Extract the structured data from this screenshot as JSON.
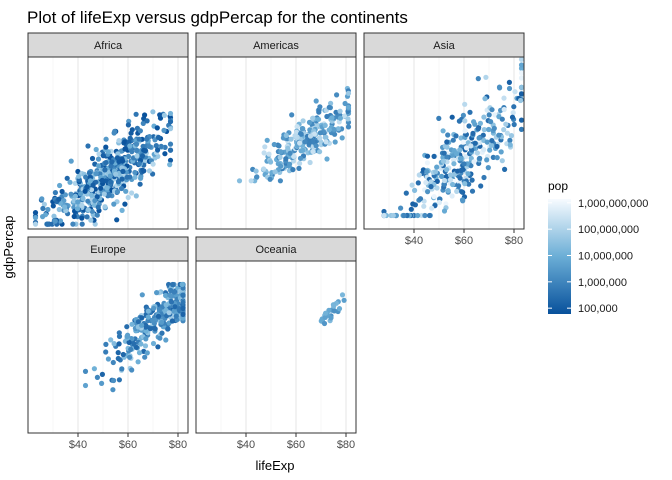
{
  "chart_data": {
    "type": "scatter",
    "title": "Plot of lifeExp versus gdpPercap for the continents",
    "xlabel": "lifeExp",
    "ylabel": "gdpPercap",
    "x_range": [
      20,
      84
    ],
    "y_scale": "log",
    "y_range": [
      200,
      120000
    ],
    "y_tick_labels_shown": false,
    "x_ticks": [
      {
        "value": 40,
        "label": "$40"
      },
      {
        "value": 60,
        "label": "$60"
      },
      {
        "value": 80,
        "label": "$80"
      }
    ],
    "grid": "vertical-only",
    "panel_border": true,
    "legend": {
      "title": "pop",
      "placement": "right",
      "scale": "log",
      "range": [
        60000,
        1400000000
      ],
      "color_low": "#08519c",
      "color_high": "#f7fbff",
      "labels": [
        {
          "value": 1000000000,
          "label": "1,000,000,000"
        },
        {
          "value": 100000000,
          "label": "100,000,000"
        },
        {
          "value": 10000000,
          "label": "10,000,000"
        },
        {
          "value": 1000000,
          "label": "1,000,000"
        },
        {
          "value": 100000,
          "label": "100,000"
        }
      ]
    },
    "facets": [
      {
        "name": "Africa",
        "x_range": [
          23,
          77
        ],
        "y_range": [
          240,
          21000
        ],
        "center_x": 51,
        "center_y": 1400,
        "pop_range": [
          60000,
          140000000
        ],
        "n_points": 520
      },
      {
        "name": "Americas",
        "x_range": [
          37,
          81
        ],
        "y_range": [
          1200,
          42000
        ],
        "center_x": 64,
        "center_y": 5500,
        "pop_range": [
          600000,
          300000000
        ],
        "n_points": 260
      },
      {
        "name": "Asia",
        "x_range": [
          28,
          83
        ],
        "y_range": [
          330,
          110000
        ],
        "center_x": 60,
        "center_y": 3000,
        "pop_range": [
          120000,
          1320000000
        ],
        "n_points": 340
      },
      {
        "name": "Europe",
        "x_range": [
          43,
          82
        ],
        "y_range": [
          1000,
          50000
        ],
        "center_x": 72,
        "center_y": 14000,
        "pop_range": [
          150000,
          82000000
        ],
        "n_points": 300
      },
      {
        "name": "Oceania",
        "x_range": [
          69,
          81
        ],
        "y_range": [
          10000,
          34000
        ],
        "center_x": 74,
        "center_y": 18000,
        "pop_range": [
          1900000,
          20400000
        ],
        "n_points": 24
      }
    ]
  }
}
